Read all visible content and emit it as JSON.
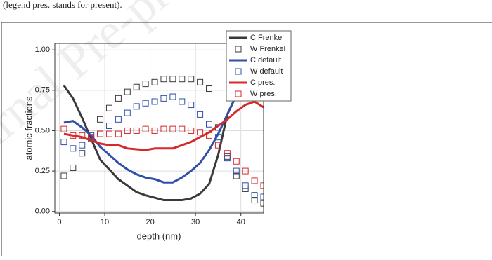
{
  "caption": "(legend pres. stands for present).",
  "watermark": "Journal Pre-proof",
  "chart_data": {
    "type": "line",
    "x_label": "depth (nm)",
    "y_label": "atomic fractions",
    "xlim": [
      -1,
      45
    ],
    "ylim": [
      -0.01,
      1.04
    ],
    "xticks": [
      0,
      10,
      20,
      30,
      40
    ],
    "yticks": [
      {
        "value": 0,
        "label": "0.00"
      },
      {
        "value": 0.25,
        "label": "0.25"
      },
      {
        "value": 0.5,
        "label": "0.50"
      },
      {
        "value": 0.75,
        "label": "0.75"
      },
      {
        "value": 1,
        "label": "1.00"
      }
    ],
    "grid": true,
    "legend": "top-right",
    "x": [
      1,
      3,
      5,
      7,
      9,
      11,
      13,
      15,
      17,
      19,
      21,
      23,
      25,
      27,
      29,
      31,
      33,
      35,
      37,
      39,
      41,
      43,
      45
    ],
    "series": [
      {
        "name": "C Frenkel",
        "color": "#3a3a3a",
        "marker": "line",
        "values": [
          0.78,
          0.7,
          0.58,
          0.45,
          0.32,
          0.26,
          0.2,
          0.16,
          0.12,
          0.1,
          0.085,
          0.07,
          0.07,
          0.07,
          0.08,
          0.11,
          0.17,
          0.35,
          0.6,
          0.72,
          null,
          null,
          null
        ]
      },
      {
        "name": "W Frenkel",
        "color": "#3a3a3a",
        "marker": "square",
        "values": [
          0.22,
          0.27,
          0.36,
          0.45,
          0.57,
          0.64,
          0.7,
          0.74,
          0.77,
          0.79,
          0.8,
          0.82,
          0.82,
          0.82,
          0.82,
          0.8,
          0.76,
          0.52,
          0.34,
          0.22,
          0.14,
          0.07,
          0.05
        ]
      },
      {
        "name": "C default",
        "color": "#2f4fa8",
        "marker": "line",
        "values": [
          0.55,
          0.56,
          0.52,
          0.47,
          0.4,
          0.35,
          0.3,
          0.26,
          0.23,
          0.21,
          0.2,
          0.18,
          0.18,
          0.21,
          0.25,
          0.3,
          0.38,
          0.48,
          0.6,
          0.72,
          null,
          null,
          null
        ]
      },
      {
        "name": "W default",
        "color": "#2f4fa8",
        "marker": "square",
        "values": [
          0.43,
          0.39,
          0.41,
          0.47,
          0.48,
          0.53,
          0.57,
          0.61,
          0.65,
          0.67,
          0.68,
          0.7,
          0.71,
          0.68,
          0.66,
          0.6,
          0.54,
          0.46,
          0.33,
          0.25,
          0.16,
          0.1,
          0.09
        ]
      },
      {
        "name": "C pres.",
        "color": "#d42a2a",
        "marker": "line",
        "values": [
          0.48,
          0.47,
          0.46,
          0.44,
          0.42,
          0.41,
          0.41,
          0.39,
          0.385,
          0.38,
          0.39,
          0.39,
          0.39,
          0.41,
          0.43,
          0.46,
          0.49,
          0.53,
          0.57,
          0.62,
          0.66,
          0.68,
          0.645
        ]
      },
      {
        "name": "W pres.",
        "color": "#d42a2a",
        "marker": "square",
        "values": [
          0.51,
          0.47,
          0.47,
          0.46,
          0.48,
          0.48,
          0.48,
          0.5,
          0.5,
          0.51,
          0.5,
          0.51,
          0.51,
          0.51,
          0.5,
          0.49,
          0.47,
          0.41,
          0.36,
          0.31,
          0.25,
          0.19,
          0.16
        ]
      }
    ]
  }
}
